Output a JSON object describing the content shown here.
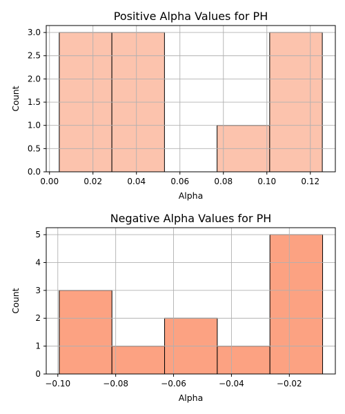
{
  "chart_data": [
    {
      "type": "bar",
      "title": "Positive Alpha Values for PH",
      "xlabel": "Alpha",
      "ylabel": "Count",
      "bin_edges": [
        0.0045,
        0.0287,
        0.0529,
        0.0771,
        0.1013,
        0.1255
      ],
      "values": [
        3,
        3,
        0,
        1,
        3
      ],
      "xlim": [
        -0.0015,
        0.1315
      ],
      "ylim": [
        0,
        3.15
      ],
      "xticks": [
        0.0,
        0.02,
        0.04,
        0.06,
        0.08,
        0.1,
        0.12
      ],
      "xtick_labels": [
        "0.00",
        "0.02",
        "0.04",
        "0.06",
        "0.08",
        "0.10",
        "0.12"
      ],
      "yticks": [
        0,
        0.5,
        1.0,
        1.5,
        2.0,
        2.5,
        3.0
      ],
      "ytick_labels": [
        "0.0",
        "0.5",
        "1.0",
        "1.5",
        "2.0",
        "2.5",
        "3.0"
      ],
      "grid": true,
      "bar_color": "#fcc3ad",
      "edge_color": "#000000"
    },
    {
      "type": "bar",
      "title": "Negative Alpha Values for PH",
      "xlabel": "Alpha",
      "ylabel": "Count",
      "bin_edges": [
        -0.0995,
        -0.0813,
        -0.0631,
        -0.0449,
        -0.0267,
        -0.0085
      ],
      "values": [
        3,
        1,
        2,
        1,
        5
      ],
      "xlim": [
        -0.104,
        -0.0041
      ],
      "ylim": [
        0,
        5.25
      ],
      "xticks": [
        -0.1,
        -0.08,
        -0.06,
        -0.04,
        -0.02
      ],
      "xtick_labels": [
        "−0.10",
        "−0.08",
        "−0.06",
        "−0.04",
        "−0.02"
      ],
      "yticks": [
        0,
        1,
        2,
        3,
        4,
        5
      ],
      "ytick_labels": [
        "0",
        "1",
        "2",
        "3",
        "4",
        "5"
      ],
      "grid": true,
      "bar_color": "#fca282",
      "edge_color": "#000000"
    }
  ]
}
